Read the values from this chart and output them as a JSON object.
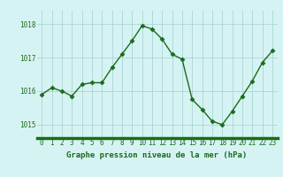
{
  "x": [
    0,
    1,
    2,
    3,
    4,
    5,
    6,
    7,
    8,
    9,
    10,
    11,
    12,
    13,
    14,
    15,
    16,
    17,
    18,
    19,
    20,
    21,
    22,
    23
  ],
  "y": [
    1015.9,
    1016.1,
    1016.0,
    1015.85,
    1016.2,
    1016.25,
    1016.25,
    1016.7,
    1017.1,
    1017.5,
    1017.95,
    1017.85,
    1017.55,
    1017.1,
    1016.95,
    1015.75,
    1015.45,
    1015.1,
    1015.0,
    1015.4,
    1015.85,
    1016.3,
    1016.85,
    1017.2
  ],
  "line_color": "#1a6b1a",
  "marker": "D",
  "marker_size": 2.5,
  "bg_color": "#d6f3f3",
  "grid_color": "#aad4d4",
  "tick_color": "#1a6b1a",
  "bottom_bar_color": "#1a6b1a",
  "xlabel": "Graphe pression niveau de la mer (hPa)",
  "ylim": [
    1014.6,
    1018.4
  ],
  "yticks": [
    1015,
    1016,
    1017,
    1018
  ],
  "xlim": [
    -0.5,
    23.5
  ],
  "tick_fontsize": 5.5,
  "xlabel_fontsize": 6.5,
  "linewidth": 1.0
}
